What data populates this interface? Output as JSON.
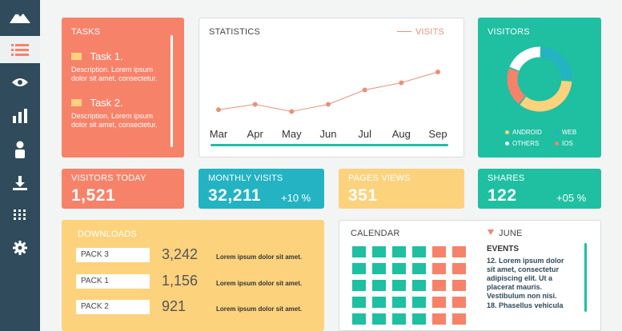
{
  "colors": {
    "sidebar": "#2f4b5c",
    "coral": "#f7826a",
    "teal": "#1fbfa1",
    "cyan": "#23b3c2",
    "yellow": "#fcd27d",
    "white": "#ffffff",
    "line": "#e8907c"
  },
  "sidebar": {
    "icons": [
      "mountain-logo-icon",
      "list-icon",
      "eye-icon",
      "bar-chart-icon",
      "user-icon",
      "download-icon",
      "grid-icon",
      "gear-icon"
    ]
  },
  "tasks": {
    "title": "TASKS",
    "items": [
      {
        "name": "Task 1.",
        "desc": "Description. Lorem ipsum dolor sit amet, consectetur."
      },
      {
        "name": "Task 2.",
        "desc": "Description. Lorem ipsum dolor sit amet, consectetur."
      }
    ]
  },
  "statistics": {
    "title": "STATISTICS",
    "legend": "VISITS"
  },
  "chart_data": {
    "type": "line",
    "categories": [
      "Mar",
      "Apr",
      "May",
      "Jun",
      "Jul",
      "Aug",
      "Sep"
    ],
    "series": [
      {
        "name": "VISITS",
        "values": [
          7,
          10,
          6,
          10,
          18,
          22,
          28
        ]
      }
    ],
    "ylim": [
      0,
      40
    ],
    "grid": false
  },
  "visitors": {
    "title": "VISITORS",
    "legend": [
      "ANDROID",
      "WEB",
      "OTHERS",
      "IOS"
    ],
    "donut": [
      {
        "name": "WEB",
        "value": 25,
        "color": "#23b3c2"
      },
      {
        "name": "ANDROID",
        "value": 35,
        "color": "#fcd27d"
      },
      {
        "name": "IOS",
        "value": 20,
        "color": "#f7826a"
      },
      {
        "name": "OTHERS",
        "value": 20,
        "color": "#ffffff"
      }
    ]
  },
  "visitors_today": {
    "label": "VISITORS TODAY",
    "value": "1,521"
  },
  "monthly": {
    "label": "MONTHLY VISITS",
    "value": "32,211",
    "pct": "+10 %"
  },
  "pages": {
    "label": "PAGES VIEWS",
    "value": "351"
  },
  "shares": {
    "label": "SHARES",
    "value": "122",
    "pct": "+05 %"
  },
  "downloads": {
    "title": "DOWNLOADS",
    "rows": [
      {
        "pack": "PACK 3",
        "count": "3,242",
        "text": "Lorem ipsum dolor sit amet."
      },
      {
        "pack": "PACK 1",
        "count": "1,156",
        "text": "Lorem ipsum dolor sit amet."
      },
      {
        "pack": "PACK 2",
        "count": "921",
        "text": "Lorem ipsum dolor sit amet."
      }
    ]
  },
  "calendar": {
    "title": "CALENDAR",
    "month": "JUNE",
    "events_title": "EVENTS",
    "event1": "12. Lorem ipsum dolor sit amet, consectetur adipiscing elit. Ut a placerat mauris. Vestibulum non nisi.",
    "event2": "18. Phasellus vehicula"
  }
}
